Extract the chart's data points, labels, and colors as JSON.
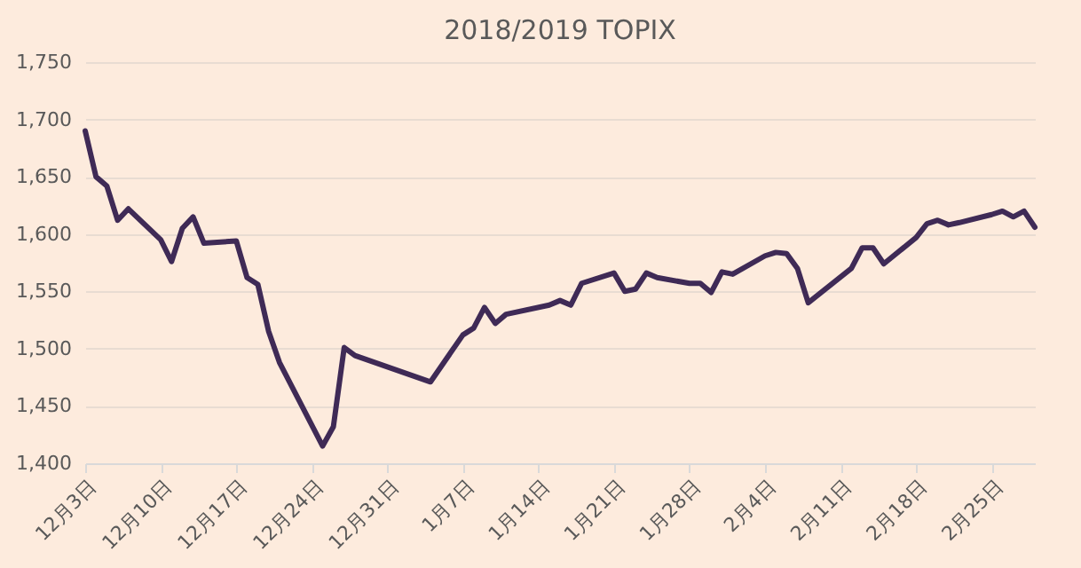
{
  "chart_data": {
    "type": "line",
    "title": "2018/2019 TOPIX",
    "x": [
      "2018-12-03",
      "2018-12-04",
      "2018-12-05",
      "2018-12-06",
      "2018-12-07",
      "2018-12-10",
      "2018-12-11",
      "2018-12-12",
      "2018-12-13",
      "2018-12-14",
      "2018-12-17",
      "2018-12-18",
      "2018-12-19",
      "2018-12-20",
      "2018-12-21",
      "2018-12-25",
      "2018-12-26",
      "2018-12-27",
      "2018-12-28",
      "2019-01-04",
      "2019-01-07",
      "2019-01-08",
      "2019-01-09",
      "2019-01-10",
      "2019-01-11",
      "2019-01-15",
      "2019-01-16",
      "2019-01-17",
      "2019-01-18",
      "2019-01-21",
      "2019-01-22",
      "2019-01-23",
      "2019-01-24",
      "2019-01-25",
      "2019-01-28",
      "2019-01-29",
      "2019-01-30",
      "2019-01-31",
      "2019-02-01",
      "2019-02-04",
      "2019-02-05",
      "2019-02-06",
      "2019-02-07",
      "2019-02-08",
      "2019-02-12",
      "2019-02-13",
      "2019-02-14",
      "2019-02-15",
      "2019-02-18",
      "2019-02-19",
      "2019-02-20",
      "2019-02-21",
      "2019-02-22",
      "2019-02-25",
      "2019-02-26",
      "2019-02-27",
      "2019-02-28",
      "2019-03-01"
    ],
    "series": [
      {
        "color": "#3f2a56",
        "values": [
          1690,
          1650,
          1642,
          1612,
          1622,
          1595,
          1576,
          1605,
          1615,
          1592,
          1594,
          1562,
          1556,
          1515,
          1488,
          1415,
          1432,
          1501,
          1494,
          1471,
          1512,
          1518,
          1536,
          1522,
          1530,
          1538,
          1542,
          1538,
          1557,
          1566,
          1550,
          1552,
          1566,
          1562,
          1557,
          1557,
          1549,
          1567,
          1565,
          1581,
          1584,
          1583,
          1570,
          1540,
          1570,
          1588,
          1588,
          1574,
          1597,
          1609,
          1612,
          1608,
          1610,
          1617,
          1620,
          1615,
          1620,
          1606
        ]
      }
    ],
    "xlim": [
      "2018-12-03",
      "2019-03-01"
    ],
    "xticks": [
      {
        "value": "2018-12-03",
        "label": "12月3日"
      },
      {
        "value": "2018-12-10",
        "label": "12月10日"
      },
      {
        "value": "2018-12-17",
        "label": "12月17日"
      },
      {
        "value": "2018-12-24",
        "label": "12月24日"
      },
      {
        "value": "2018-12-31",
        "label": "12月31日"
      },
      {
        "value": "2019-01-07",
        "label": "1月7日"
      },
      {
        "value": "2019-01-14",
        "label": "1月14日"
      },
      {
        "value": "2019-01-21",
        "label": "1月21日"
      },
      {
        "value": "2019-01-28",
        "label": "1月28日"
      },
      {
        "value": "2019-02-04",
        "label": "2月4日"
      },
      {
        "value": "2019-02-11",
        "label": "2月11日"
      },
      {
        "value": "2019-02-18",
        "label": "2月18日"
      },
      {
        "value": "2019-02-25",
        "label": "2月25日"
      }
    ],
    "ylim": [
      1400,
      1750
    ],
    "yticks": [
      {
        "value": 1400,
        "label": "1,400"
      },
      {
        "value": 1450,
        "label": "1,450"
      },
      {
        "value": 1500,
        "label": "1,500"
      },
      {
        "value": 1550,
        "label": "1,550"
      },
      {
        "value": 1600,
        "label": "1,600"
      },
      {
        "value": 1650,
        "label": "1,650"
      },
      {
        "value": 1700,
        "label": "1,700"
      },
      {
        "value": 1750,
        "label": "1,750"
      }
    ],
    "grid": "y",
    "legend": false,
    "marker": "none",
    "line_style": "solid"
  }
}
